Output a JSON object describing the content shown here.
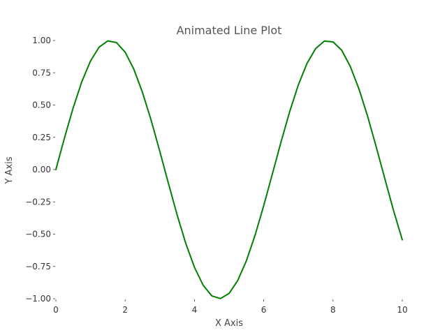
{
  "chart_data": {
    "type": "line",
    "title": "Animated Line Plot",
    "xlabel": "X Axis",
    "ylabel": "Y Axis",
    "xlim": [
      0,
      10
    ],
    "ylim": [
      -1.0,
      1.0
    ],
    "x_ticks": [
      0,
      2,
      4,
      6,
      8,
      10
    ],
    "x_tick_labels": [
      "0",
      "2",
      "4",
      "6",
      "8",
      "10"
    ],
    "y_ticks": [
      1.0,
      0.75,
      0.5,
      0.25,
      0.0,
      -0.25,
      -0.5,
      -0.75,
      -1.0
    ],
    "y_tick_labels": [
      "1.00",
      "0.75",
      "0.50",
      "0.25",
      "0.00",
      "−0.25",
      "−0.50",
      "−0.75",
      "−1.00"
    ],
    "grid": false,
    "series": [
      {
        "color": "#008000",
        "x": [
          0.0,
          0.25,
          0.5,
          0.75,
          1.0,
          1.25,
          1.5,
          1.75,
          2.0,
          2.25,
          2.5,
          2.75,
          3.0,
          3.25,
          3.5,
          3.75,
          4.0,
          4.25,
          4.5,
          4.75,
          5.0,
          5.25,
          5.5,
          5.75,
          6.0,
          6.25,
          6.5,
          6.75,
          7.0,
          7.25,
          7.5,
          7.75,
          8.0,
          8.25,
          8.5,
          8.75,
          9.0,
          9.25,
          9.5,
          9.75,
          10.0
        ],
        "y": [
          0.0,
          0.247,
          0.479,
          0.682,
          0.841,
          0.949,
          0.997,
          0.984,
          0.909,
          0.778,
          0.598,
          0.382,
          0.141,
          -0.108,
          -0.351,
          -0.572,
          -0.757,
          -0.895,
          -0.978,
          -0.999,
          -0.959,
          -0.859,
          -0.706,
          -0.508,
          -0.279,
          -0.033,
          0.215,
          0.45,
          0.657,
          0.823,
          0.938,
          0.995,
          0.989,
          0.925,
          0.798,
          0.624,
          0.412,
          0.173,
          -0.075,
          -0.32,
          -0.544
        ]
      }
    ]
  }
}
